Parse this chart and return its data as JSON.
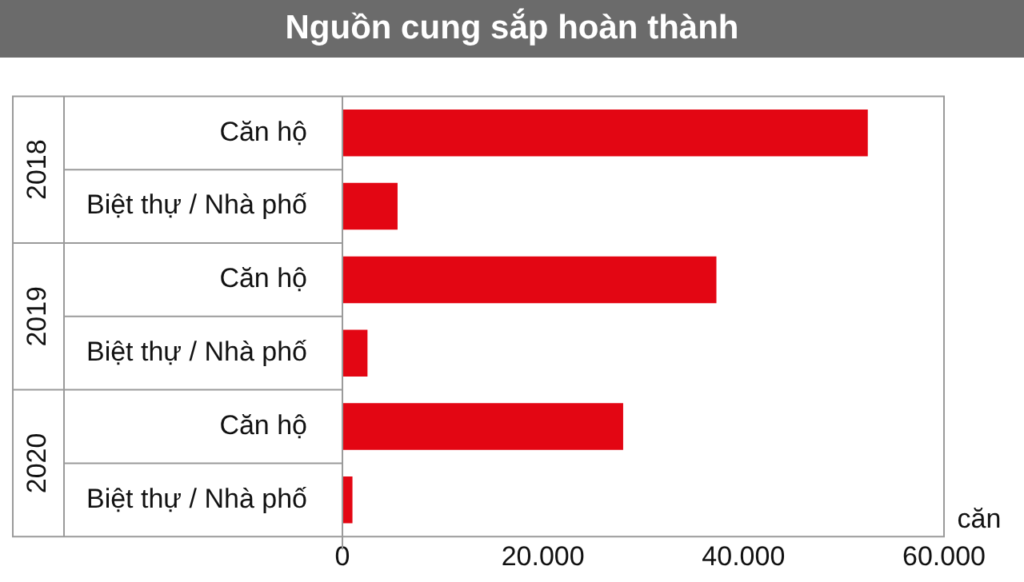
{
  "chart_data": {
    "type": "bar",
    "orientation": "horizontal",
    "title": "Nguồn cung sắp hoàn thành",
    "xlabel": "căn",
    "categories": [
      "Căn hộ",
      "Biệt thự / Nhà phố",
      "Căn hộ",
      "Biệt thự / Nhà phố",
      "Căn hộ",
      "Biệt thự / Nhà phố"
    ],
    "values": [
      52400,
      5500,
      37300,
      2500,
      28000,
      1000
    ],
    "color": "#e30613",
    "xlim": [
      0,
      60000
    ],
    "xticks": [
      0,
      {
        "value": 20000,
        "label": "20.000"
      },
      {
        "value": 40000,
        "label": "40.000"
      },
      {
        "value": 60000,
        "label": "60.000"
      }
    ],
    "annotations": [
      "2018",
      "2019",
      "2020"
    ],
    "grid": false,
    "legend": false
  }
}
